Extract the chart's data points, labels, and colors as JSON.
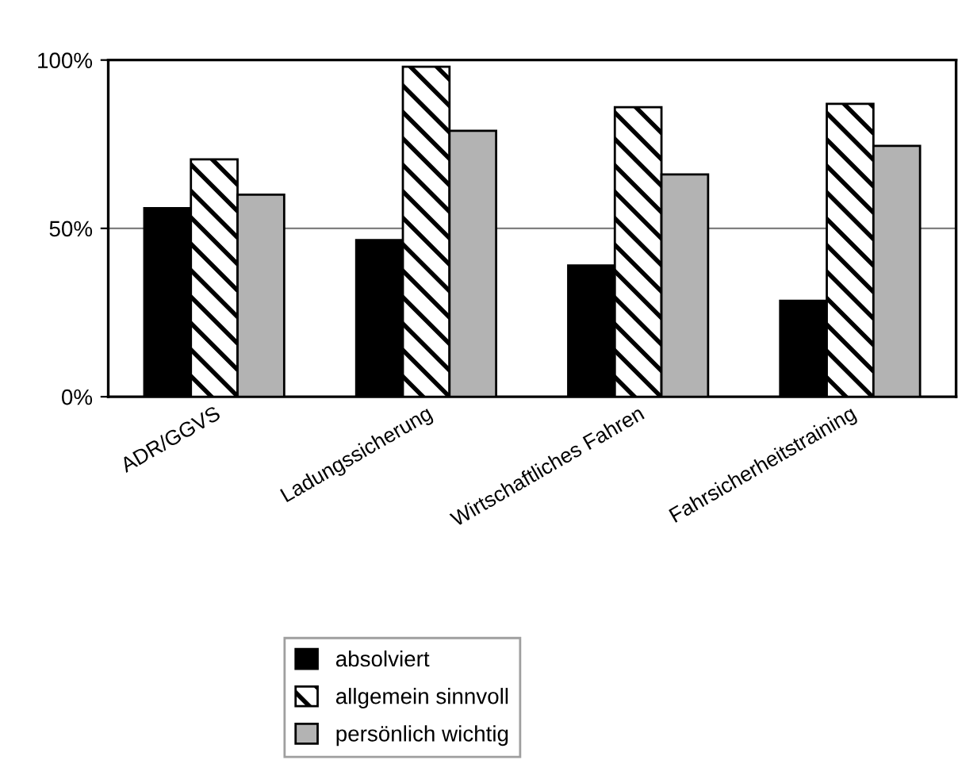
{
  "chart_data": {
    "type": "bar",
    "categories": [
      "ADR/GGVS",
      "Ladungssicherung",
      "Wirtschaftliches Fahren",
      "Fahrsicherheitstraining"
    ],
    "series": [
      {
        "name": "absolviert",
        "color": "#000000",
        "values": [
          56,
          46.5,
          39,
          28.5
        ]
      },
      {
        "name": "allgemein sinnvoll",
        "color": "#000000",
        "values": [
          70.5,
          98,
          86,
          87
        ]
      },
      {
        "name": "persönlich wichtig",
        "color": "#b3b3b3",
        "values": [
          60,
          79,
          66,
          74.5
        ]
      }
    ],
    "ylim": [
      0,
      100
    ],
    "yticks": [
      {
        "value": 0,
        "label": "0%"
      },
      {
        "value": 50,
        "label": "50%"
      },
      {
        "value": 100,
        "label": "100%"
      }
    ],
    "grid": "y",
    "legend": "bottom"
  }
}
